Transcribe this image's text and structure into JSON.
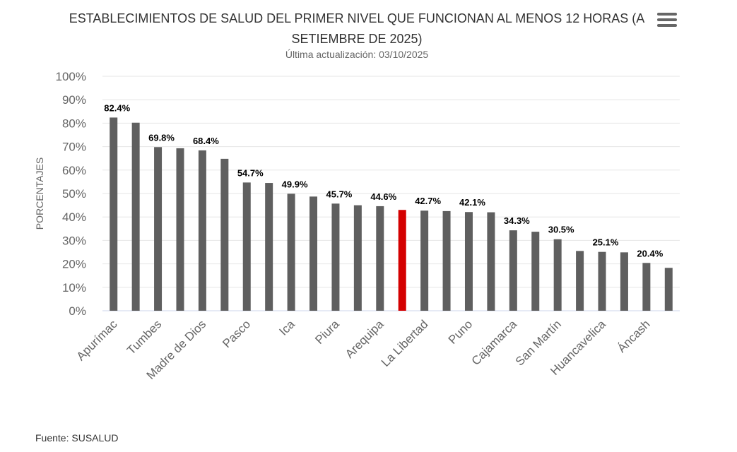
{
  "header": {
    "title": "ESTABLECIMIENTOS DE SALUD DEL PRIMER NIVEL QUE FUNCIONAN AL MENOS 12 HORAS (A SETIEMBRE DE 2025)",
    "subtitle": "Última actualización: 03/10/2025",
    "menu_icon": "hamburger-menu-icon"
  },
  "footer": {
    "source": "Fuente: SUSALUD"
  },
  "chart_data": {
    "type": "bar",
    "title": "ESTABLECIMIENTOS DE SALUD DEL PRIMER NIVEL QUE FUNCIONAN AL MENOS 12 HORAS (A SETIEMBRE DE 2025)",
    "subtitle": "Última actualización: 03/10/2025",
    "xlabel": "",
    "ylabel": "PORCENTAJES",
    "ylim": [
      0,
      100
    ],
    "yticks": [
      "0%",
      "10%",
      "20%",
      "30%",
      "40%",
      "50%",
      "60%",
      "70%",
      "80%",
      "90%",
      "100%"
    ],
    "grid": true,
    "categories": [
      "Apurímac",
      "",
      "Tumbes",
      "",
      "Madre de Dios",
      "",
      "Pasco",
      "",
      "Ica",
      "",
      "Piura",
      "",
      "Arequipa",
      "",
      "La Libertad",
      "",
      "Puno",
      "",
      "Cajamarca",
      "",
      "San Martín",
      "",
      "Huancavelica",
      "",
      "Áncash",
      ""
    ],
    "values": [
      82.4,
      80.2,
      69.8,
      69.3,
      68.4,
      64.8,
      54.7,
      54.5,
      49.9,
      48.7,
      45.7,
      45.0,
      44.6,
      43.0,
      42.7,
      42.5,
      42.1,
      42.0,
      34.3,
      33.7,
      30.5,
      25.5,
      25.1,
      24.9,
      20.4,
      18.3
    ],
    "data_labels": [
      "82.4%",
      "",
      "69.8%",
      "",
      "68.4%",
      "",
      "54.7%",
      "",
      "49.9%",
      "",
      "45.7%",
      "",
      "44.6%",
      "",
      "42.7%",
      "",
      "42.1%",
      "",
      "34.3%",
      "",
      "30.5%",
      "",
      "25.1%",
      "",
      "20.4%",
      ""
    ],
    "bar_color": "#5f5f5f",
    "highlight_color": "#d40000",
    "highlight_index": 13
  }
}
